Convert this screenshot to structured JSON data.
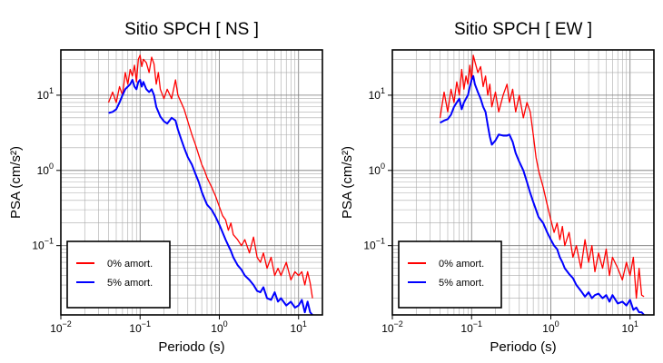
{
  "chart_data": [
    {
      "type": "line",
      "title": "Sitio SPCH [ NS ]",
      "xlabel": "Periodo (s)",
      "ylabel": "PSA (cm/s²)",
      "xscale": "log",
      "yscale": "log",
      "xlim": [
        0.01,
        20
      ],
      "ylim": [
        0.012,
        40
      ],
      "grid": true,
      "legend_position": "bottom-left",
      "x_ticks": [
        {
          "value": 0.01,
          "base": "10",
          "exp": "−2"
        },
        {
          "value": 0.1,
          "base": "10",
          "exp": "−1"
        },
        {
          "value": 1,
          "base": "10",
          "exp": "0"
        },
        {
          "value": 10,
          "base": "10",
          "exp": "1"
        }
      ],
      "y_ticks": [
        {
          "value": 0.1,
          "base": "10",
          "exp": "−1"
        },
        {
          "value": 1,
          "base": "10",
          "exp": "0"
        },
        {
          "value": 10,
          "base": "10",
          "exp": "1"
        }
      ],
      "series": [
        {
          "name": "0% amort.",
          "color": "#ff0000",
          "x": [
            0.04,
            0.045,
            0.05,
            0.055,
            0.06,
            0.065,
            0.07,
            0.075,
            0.08,
            0.085,
            0.09,
            0.095,
            0.1,
            0.105,
            0.11,
            0.12,
            0.13,
            0.14,
            0.15,
            0.16,
            0.17,
            0.18,
            0.2,
            0.22,
            0.25,
            0.28,
            0.3,
            0.33,
            0.36,
            0.4,
            0.45,
            0.5,
            0.55,
            0.6,
            0.65,
            0.7,
            0.8,
            0.9,
            1.0,
            1.1,
            1.2,
            1.3,
            1.4,
            1.5,
            1.7,
            1.9,
            2.1,
            2.4,
            2.7,
            3.0,
            3.3,
            3.6,
            4.0,
            4.5,
            5.0,
            5.5,
            6.0,
            7.0,
            8.0,
            9.0,
            10.0,
            11.0,
            12.0,
            13.0,
            14.0,
            15.0
          ],
          "y": [
            8,
            11,
            8,
            13,
            10,
            20,
            14,
            22,
            18,
            25,
            15,
            30,
            34,
            24,
            30,
            27,
            20,
            32,
            26,
            14,
            20,
            12,
            9,
            12,
            9,
            16,
            10,
            8,
            6.5,
            4.5,
            3,
            2.2,
            1.6,
            1.2,
            1.0,
            0.8,
            0.6,
            0.45,
            0.33,
            0.25,
            0.22,
            0.16,
            0.2,
            0.14,
            0.12,
            0.1,
            0.12,
            0.08,
            0.13,
            0.07,
            0.06,
            0.08,
            0.05,
            0.07,
            0.04,
            0.05,
            0.04,
            0.06,
            0.035,
            0.045,
            0.04,
            0.045,
            0.03,
            0.045,
            0.032,
            0.02
          ]
        },
        {
          "name": "5% amort.",
          "color": "#0000ff",
          "x": [
            0.04,
            0.045,
            0.05,
            0.055,
            0.06,
            0.065,
            0.07,
            0.075,
            0.08,
            0.085,
            0.09,
            0.095,
            0.1,
            0.105,
            0.11,
            0.12,
            0.13,
            0.14,
            0.15,
            0.16,
            0.17,
            0.18,
            0.2,
            0.22,
            0.25,
            0.28,
            0.3,
            0.33,
            0.36,
            0.4,
            0.45,
            0.5,
            0.55,
            0.6,
            0.65,
            0.7,
            0.8,
            0.9,
            1.0,
            1.1,
            1.2,
            1.3,
            1.4,
            1.5,
            1.7,
            1.9,
            2.1,
            2.4,
            2.7,
            3.0,
            3.3,
            3.6,
            4.0,
            4.5,
            5.0,
            5.5,
            6.0,
            7.0,
            8.0,
            9.0,
            10.0,
            11.0,
            12.0,
            13.0,
            14.0,
            15.0
          ],
          "y": [
            5.8,
            6,
            6.5,
            8,
            10,
            12,
            13,
            14,
            16,
            13,
            12,
            15,
            16,
            13,
            15,
            12,
            11,
            12,
            10,
            7,
            6,
            5.2,
            4.5,
            4.2,
            5,
            4.6,
            3.5,
            2.6,
            2,
            1.5,
            1.2,
            0.9,
            0.7,
            0.52,
            0.42,
            0.35,
            0.3,
            0.24,
            0.19,
            0.15,
            0.12,
            0.1,
            0.085,
            0.07,
            0.055,
            0.048,
            0.04,
            0.035,
            0.03,
            0.025,
            0.024,
            0.028,
            0.02,
            0.019,
            0.024,
            0.018,
            0.02,
            0.016,
            0.018,
            0.015,
            0.016,
            0.019,
            0.013,
            0.018,
            0.013,
            0.012
          ]
        }
      ]
    },
    {
      "type": "line",
      "title": "Sitio SPCH [ EW ]",
      "xlabel": "Periodo (s)",
      "ylabel": "PSA (cm/s²)",
      "xscale": "log",
      "yscale": "log",
      "xlim": [
        0.01,
        20
      ],
      "ylim": [
        0.012,
        40
      ],
      "grid": true,
      "legend_position": "bottom-left",
      "x_ticks": [
        {
          "value": 0.01,
          "base": "10",
          "exp": "−2"
        },
        {
          "value": 0.1,
          "base": "10",
          "exp": "−1"
        },
        {
          "value": 1,
          "base": "10",
          "exp": "0"
        },
        {
          "value": 10,
          "base": "10",
          "exp": "1"
        }
      ],
      "y_ticks": [
        {
          "value": 0.1,
          "base": "10",
          "exp": "−1"
        },
        {
          "value": 1,
          "base": "10",
          "exp": "0"
        },
        {
          "value": 10,
          "base": "10",
          "exp": "1"
        }
      ],
      "series": [
        {
          "name": "0% amort.",
          "color": "#ff0000",
          "x": [
            0.04,
            0.045,
            0.05,
            0.055,
            0.06,
            0.065,
            0.07,
            0.075,
            0.08,
            0.085,
            0.09,
            0.095,
            0.1,
            0.105,
            0.11,
            0.12,
            0.13,
            0.14,
            0.15,
            0.16,
            0.17,
            0.18,
            0.2,
            0.22,
            0.25,
            0.28,
            0.3,
            0.33,
            0.36,
            0.4,
            0.45,
            0.5,
            0.55,
            0.6,
            0.65,
            0.7,
            0.8,
            0.9,
            1.0,
            1.1,
            1.2,
            1.3,
            1.4,
            1.5,
            1.7,
            1.9,
            2.1,
            2.4,
            2.7,
            3.0,
            3.3,
            3.6,
            4.0,
            4.5,
            5.0,
            5.5,
            6.0,
            7.0,
            8.0,
            9.0,
            10.0,
            11.0,
            12.0,
            13.0,
            14.0,
            15.0
          ],
          "y": [
            5,
            11,
            6,
            12,
            8,
            15,
            10,
            22,
            12,
            18,
            14,
            25,
            15,
            34,
            28,
            20,
            24,
            13,
            18,
            10,
            14,
            7,
            11,
            6,
            10,
            14,
            8,
            12,
            6,
            10,
            5,
            8,
            6,
            3,
            1.5,
            1,
            0.6,
            0.35,
            0.22,
            0.15,
            0.2,
            0.12,
            0.18,
            0.1,
            0.15,
            0.07,
            0.1,
            0.05,
            0.12,
            0.06,
            0.1,
            0.045,
            0.08,
            0.05,
            0.09,
            0.04,
            0.07,
            0.05,
            0.035,
            0.06,
            0.04,
            0.07,
            0.02,
            0.05,
            0.022,
            0.021
          ]
        },
        {
          "name": "5% amort.",
          "color": "#0000ff",
          "x": [
            0.04,
            0.045,
            0.05,
            0.055,
            0.06,
            0.065,
            0.07,
            0.075,
            0.08,
            0.085,
            0.09,
            0.095,
            0.1,
            0.105,
            0.11,
            0.12,
            0.13,
            0.14,
            0.15,
            0.16,
            0.17,
            0.18,
            0.2,
            0.22,
            0.25,
            0.28,
            0.3,
            0.33,
            0.36,
            0.4,
            0.45,
            0.5,
            0.55,
            0.6,
            0.65,
            0.7,
            0.8,
            0.9,
            1.0,
            1.1,
            1.2,
            1.3,
            1.4,
            1.5,
            1.7,
            1.9,
            2.1,
            2.4,
            2.7,
            3.0,
            3.3,
            3.6,
            4.0,
            4.5,
            5.0,
            5.5,
            6.0,
            7.0,
            8.0,
            9.0,
            10.0,
            11.0,
            12.0,
            13.0,
            14.0,
            15.0
          ],
          "y": [
            4.3,
            4.6,
            4.8,
            5.5,
            7,
            8,
            9,
            6.5,
            8,
            9,
            10,
            13,
            16,
            18,
            14,
            11,
            9,
            7,
            6,
            4,
            2.8,
            2.2,
            2.5,
            3,
            2.9,
            2.9,
            3,
            2.4,
            1.7,
            1.3,
            1,
            0.7,
            0.5,
            0.38,
            0.3,
            0.24,
            0.2,
            0.15,
            0.12,
            0.1,
            0.09,
            0.07,
            0.06,
            0.05,
            0.042,
            0.037,
            0.03,
            0.025,
            0.021,
            0.024,
            0.02,
            0.022,
            0.023,
            0.02,
            0.022,
            0.018,
            0.022,
            0.017,
            0.018,
            0.016,
            0.019,
            0.014,
            0.015,
            0.013,
            0.013,
            0.012
          ]
        }
      ]
    }
  ]
}
